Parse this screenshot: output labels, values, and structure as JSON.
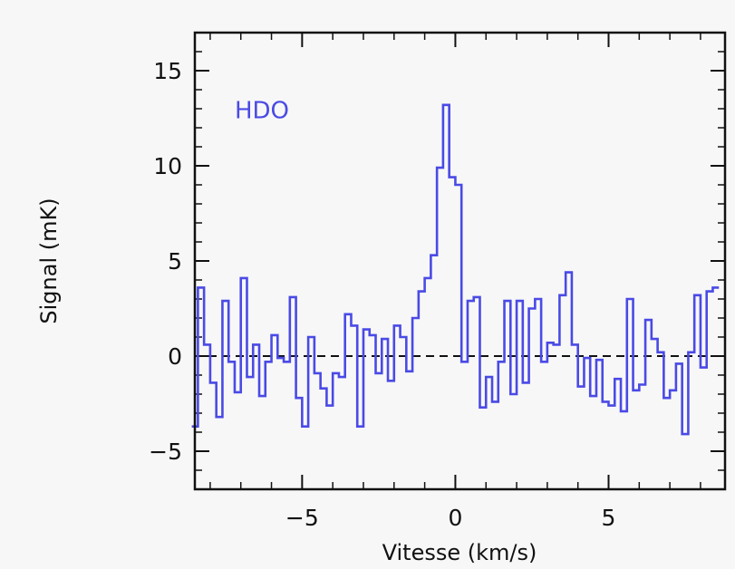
{
  "chart_data": {
    "type": "line",
    "step": true,
    "title": "",
    "xlabel": "Vitesse (km/s)",
    "ylabel": "Signal (mK)",
    "xlim": [
      -8.5,
      8.8
    ],
    "ylim": [
      -7,
      17
    ],
    "xticks": [
      -5,
      0,
      5
    ],
    "xtick_labels": [
      "−5",
      "0",
      "5"
    ],
    "yticks": [
      -5,
      0,
      5,
      10,
      15
    ],
    "ytick_labels": [
      "−5",
      "0",
      "5",
      "10",
      "15"
    ],
    "grid": false,
    "reference_line": {
      "y": 0,
      "style": "dashed",
      "color": "#111111"
    },
    "series": [
      {
        "name": "HDO",
        "color": "#4a4ae6",
        "x": [
          -8.5,
          -8.3,
          -8.1,
          -7.9,
          -7.7,
          -7.5,
          -7.3,
          -7.1,
          -6.9,
          -6.7,
          -6.5,
          -6.3,
          -6.1,
          -5.9,
          -5.7,
          -5.5,
          -5.3,
          -5.1,
          -4.9,
          -4.7,
          -4.5,
          -4.3,
          -4.1,
          -3.9,
          -3.7,
          -3.5,
          -3.3,
          -3.1,
          -2.9,
          -2.7,
          -2.5,
          -2.3,
          -2.1,
          -1.9,
          -1.7,
          -1.5,
          -1.3,
          -1.1,
          -0.9,
          -0.7,
          -0.5,
          -0.3,
          -0.1,
          0.1,
          0.3,
          0.5,
          0.7,
          0.9,
          1.1,
          1.3,
          1.5,
          1.7,
          1.9,
          2.1,
          2.3,
          2.5,
          2.7,
          2.9,
          3.1,
          3.3,
          3.5,
          3.7,
          3.9,
          4.1,
          4.3,
          4.5,
          4.7,
          4.9,
          5.1,
          5.3,
          5.5,
          5.7,
          5.9,
          6.1,
          6.3,
          6.5,
          6.7,
          6.9,
          7.1,
          7.3,
          7.5,
          7.7,
          7.9,
          8.1,
          8.3,
          8.5
        ],
        "y": [
          -3.7,
          3.6,
          0.6,
          -1.4,
          -3.2,
          2.9,
          -0.3,
          -1.9,
          4.1,
          -1.1,
          0.6,
          -2.1,
          -0.3,
          1.1,
          -0.1,
          -0.3,
          3.1,
          -2.2,
          -3.7,
          1.0,
          -0.9,
          -1.7,
          -2.6,
          -0.9,
          -1.1,
          2.2,
          1.6,
          -3.7,
          1.4,
          1.1,
          -0.9,
          0.9,
          -1.3,
          1.6,
          1.0,
          -0.8,
          2.0,
          3.4,
          4.1,
          5.3,
          9.9,
          13.2,
          9.4,
          9.0,
          -0.3,
          2.9,
          3.1,
          -2.7,
          -1.1,
          -2.4,
          -0.3,
          2.9,
          -2.0,
          2.9,
          -1.4,
          2.5,
          3.0,
          -0.3,
          0.7,
          0.6,
          3.2,
          4.4,
          0.6,
          -1.6,
          -0.1,
          -2.1,
          -0.2,
          -2.4,
          -2.6,
          -1.2,
          -2.9,
          3.0,
          -1.8,
          -1.5,
          1.9,
          0.9,
          0.2,
          -2.2,
          -1.8,
          -0.4,
          -4.1,
          0.2,
          3.2,
          -0.6,
          3.4,
          3.6
        ]
      }
    ],
    "annotations": [
      {
        "text": "HDO",
        "x": -7.2,
        "y": 12.5,
        "color": "#4a4ae6"
      }
    ]
  }
}
